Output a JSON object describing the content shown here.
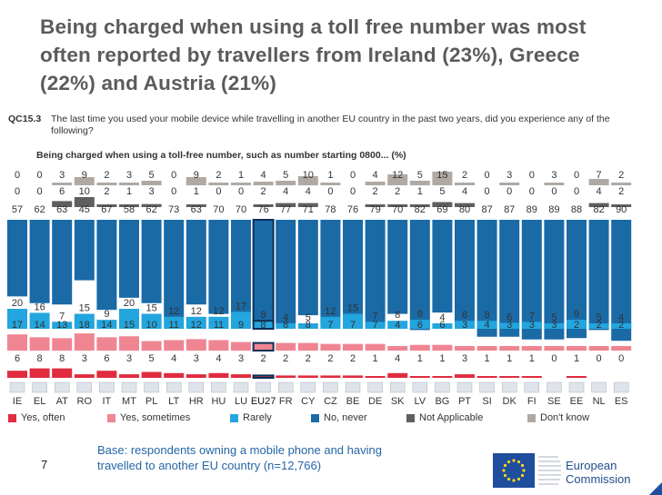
{
  "title_lines": [
    "Being charged when using a toll free number was most",
    "often reported by travellers from Ireland (23%), Greece",
    "(22%) and Austria (21%)"
  ],
  "question_code": "QC15.3",
  "question_text": "The last time you used your mobile device while travelling in another EU country in the past two years, did you experience any of the following?",
  "chart_data": {
    "type": "bar",
    "stacked": true,
    "title": "Being charged when using a toll-free number, such as number starting 0800... (%)",
    "categories": [
      "IE",
      "EL",
      "AT",
      "RO",
      "IT",
      "MT",
      "PL",
      "LT",
      "HR",
      "HU",
      "LU",
      "EU27",
      "FR",
      "CY",
      "CZ",
      "BE",
      "DE",
      "SK",
      "LV",
      "BG",
      "PT",
      "SI",
      "DK",
      "FI",
      "SE",
      "EE",
      "NL",
      "ES"
    ],
    "highlight_category": "EU27",
    "series": [
      {
        "name": "Yes, often",
        "color": "#e02c3e",
        "values": [
          6,
          8,
          8,
          3,
          6,
          3,
          5,
          4,
          3,
          4,
          3,
          2,
          2,
          2,
          2,
          2,
          1,
          4,
          1,
          1,
          3,
          1,
          1,
          1,
          0,
          1,
          0,
          0
        ]
      },
      {
        "name": "Yes, sometimes",
        "color": "#f08592",
        "values": [
          17,
          14,
          13,
          18,
          14,
          15,
          10,
          11,
          12,
          11,
          9,
          8,
          8,
          8,
          7,
          7,
          7,
          4,
          6,
          6,
          3,
          4,
          3,
          3,
          3,
          2,
          2,
          2
        ]
      },
      {
        "name": "Rarely",
        "color": "#23a5de",
        "values": [
          20,
          16,
          7,
          15,
          9,
          20,
          15,
          12,
          12,
          12,
          17,
          8,
          4,
          5,
          12,
          15,
          7,
          8,
          9,
          4,
          8,
          8,
          6,
          7,
          5,
          9,
          5,
          4
        ]
      },
      {
        "name": "No, never",
        "color": "#1a6aa6",
        "values": [
          57,
          62,
          63,
          45,
          67,
          58,
          62,
          73,
          63,
          70,
          70,
          76,
          77,
          71,
          78,
          76,
          79,
          70,
          82,
          69,
          80,
          87,
          87,
          89,
          89,
          88,
          82,
          90
        ]
      },
      {
        "name": "Not Applicable",
        "color": "#5f5f5f",
        "values": [
          0,
          0,
          6,
          10,
          2,
          1,
          3,
          0,
          1,
          0,
          0,
          2,
          4,
          4,
          0,
          0,
          2,
          2,
          1,
          5,
          4,
          0,
          0,
          0,
          0,
          0,
          4,
          2
        ]
      },
      {
        "name": "Don't know",
        "color": "#b0a9a3",
        "values": [
          0,
          0,
          3,
          9,
          2,
          3,
          5,
          0,
          9,
          2,
          1,
          4,
          5,
          10,
          1,
          0,
          4,
          12,
          5,
          15,
          2,
          0,
          3,
          0,
          3,
          0,
          7,
          2
        ]
      }
    ]
  },
  "legend": {
    "yes_often": "Yes, often",
    "yes_sometimes": "Yes, sometimes",
    "rarely": "Rarely",
    "no_never": "No, never",
    "not_applicable": "Not Applicable",
    "dont_know": "Don't know"
  },
  "base_lines": [
    "Base: respondents owning a mobile phone and having",
    "travelled to another EU country (n=12,766)"
  ],
  "page_number": "7",
  "logo_text_lines": [
    "European",
    "Commission"
  ],
  "logo_text": "European Commission",
  "colors": {
    "yes_often": "#e02c3e",
    "yes_sometimes": "#f08592",
    "rarely": "#23a5de",
    "no_never": "#1a6aa6",
    "not_applicable": "#5f5f5f",
    "dont_know": "#b0a9a3",
    "accent": "#2666a6"
  }
}
